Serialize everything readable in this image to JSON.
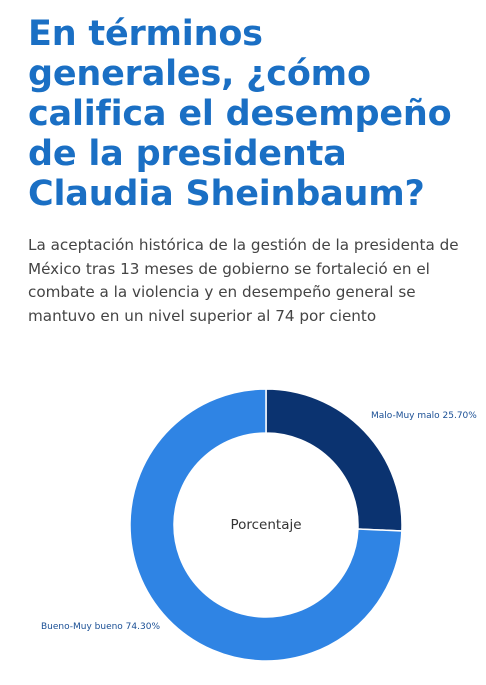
{
  "article": {
    "headline": "En términos generales, ¿cómo califica el desempeño de la presidenta Claudia Sheinbaum?",
    "dek": "La aceptación histórica de la gestión de la presidenta de México tras 13 meses de gobierno se fortaleció en el combate a la violencia y en desempeño general se mantuvo en un nivel superior al 74 por ciento"
  },
  "chart_data": {
    "type": "pie",
    "center_label": "Porcentaje",
    "slices": [
      {
        "label": "Malo-Muy malo 25.70%",
        "category": "Malo-Muy malo",
        "value": 25.7,
        "color": "#0b3370"
      },
      {
        "label": "Bueno-Muy bueno 74.30%",
        "category": "Bueno-Muy bueno",
        "value": 74.3,
        "color": "#2f84e4"
      }
    ]
  }
}
